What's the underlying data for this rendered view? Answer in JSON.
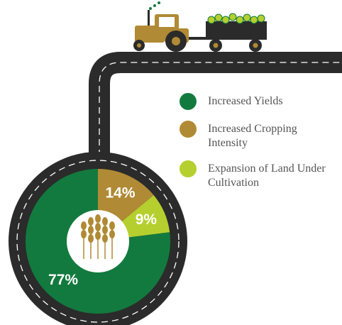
{
  "chart_data": {
    "type": "pie",
    "categories": [
      "Increased Yields",
      "Increased Cropping Intensity",
      "Expansion of Land Under Cultivation"
    ],
    "values": [
      77,
      14,
      9
    ],
    "value_labels": [
      "77%",
      "14%",
      "9%"
    ],
    "colors": [
      "#127a3e",
      "#b08a34",
      "#b5cf2e"
    ]
  }
}
